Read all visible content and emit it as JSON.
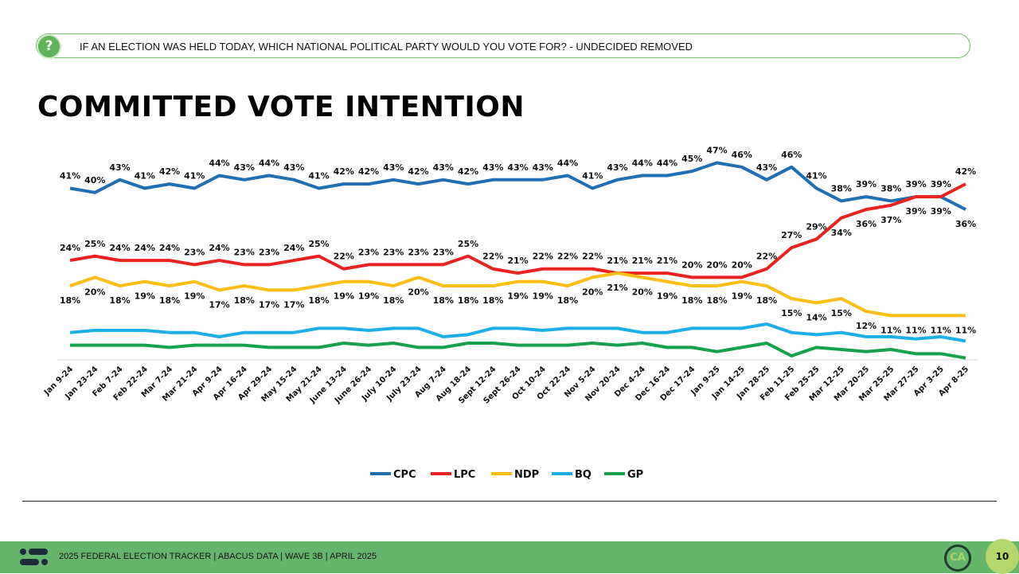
{
  "question": "IF AN ELECTION WAS HELD TODAY, WHICH NATIONAL POLITICAL PARTY WOULD YOU VOTE FOR? - UNDECIDED REMOVED",
  "question_icon": "?",
  "title": "COMMITTED VOTE INTENTION",
  "footer": {
    "text": "2025 FEDERAL ELECTION TRACKER  |  ABACUS DATA  |  WAVE 3B  |  APRIL 2025",
    "logo": "CA",
    "page": "10"
  },
  "chart_data": {
    "type": "line",
    "title": "COMMITTED VOTE INTENTION",
    "ylim": [
      0,
      50
    ],
    "legend_placement": "bottom",
    "categories": [
      "Jan 9-24",
      "Jan 23-24",
      "Feb 7-24",
      "Feb 22-24",
      "Mar 7-24",
      "Mar 21-24",
      "Apr 9-24",
      "Apr 16-24",
      "Apr 29-24",
      "May 15-24",
      "May 21-24",
      "June 13-24",
      "June 26-24",
      "July 10-24",
      "July 23-24",
      "Aug 7-24",
      "Aug 18-24",
      "Sept 12-24",
      "Sept 26-24",
      "Oct 10-24",
      "Oct 22-24",
      "Nov 5-24",
      "Nov 20-24",
      "Dec 4-24",
      "Dec 16-24",
      "Dec 17-24",
      "Jan 9-25",
      "Jan 14-25",
      "Jan 28-25",
      "Feb 11-25",
      "Feb 25-25",
      "Mar 12-25",
      "Mar 20-25",
      "Mar 25-25",
      "Mar 27-25",
      "Apr 3-25",
      "Apr 8-25"
    ],
    "series": [
      {
        "name": "CPC",
        "color": "#1f6fb5",
        "labels": "above",
        "values": [
          41,
          40,
          43,
          41,
          42,
          41,
          44,
          43,
          44,
          43,
          41,
          42,
          42,
          43,
          42,
          43,
          42,
          43,
          43,
          43,
          44,
          41,
          43,
          44,
          44,
          45,
          47,
          46,
          43,
          46,
          41,
          38,
          39,
          38,
          39,
          39,
          36
        ]
      },
      {
        "name": "LPC",
        "color": "#e8231f",
        "labels": "above",
        "values": [
          24,
          25,
          24,
          24,
          24,
          23,
          24,
          23,
          23,
          24,
          25,
          22,
          23,
          23,
          23,
          23,
          25,
          22,
          21,
          22,
          22,
          22,
          21,
          21,
          21,
          20,
          20,
          20,
          22,
          27,
          29,
          34,
          36,
          37,
          39,
          39,
          42
        ]
      },
      {
        "name": "NDP",
        "color": "#fbbd16",
        "labels": "below",
        "values": [
          18,
          20,
          18,
          19,
          18,
          19,
          17,
          18,
          17,
          17,
          18,
          19,
          19,
          18,
          20,
          18,
          18,
          18,
          19,
          19,
          18,
          20,
          21,
          20,
          19,
          18,
          18,
          19,
          18,
          15,
          14,
          15,
          12,
          11,
          11,
          11,
          11
        ]
      },
      {
        "name": "BQ",
        "color": "#1eaee8",
        "labels": "none",
        "values": [
          7,
          7.5,
          7.5,
          7.5,
          7,
          7,
          6,
          7,
          7,
          7,
          8,
          8,
          7.5,
          8,
          8,
          6,
          6.5,
          8,
          8,
          7.5,
          8,
          8,
          8,
          7,
          7,
          8,
          8,
          8,
          9,
          7,
          6.5,
          7,
          6,
          6,
          5.5,
          6,
          5
        ]
      },
      {
        "name": "GP",
        "color": "#15a24a",
        "labels": "none",
        "values": [
          4,
          4,
          4,
          4,
          3.5,
          4,
          4,
          4,
          3.5,
          3.5,
          3.5,
          4.5,
          4,
          4.5,
          3.5,
          3.5,
          4.5,
          4.5,
          4,
          4,
          4,
          4.5,
          4,
          4.5,
          3.5,
          3.5,
          2.5,
          3.5,
          4.5,
          1.5,
          3.5,
          3,
          2.5,
          3,
          2,
          2,
          1
        ]
      }
    ]
  }
}
